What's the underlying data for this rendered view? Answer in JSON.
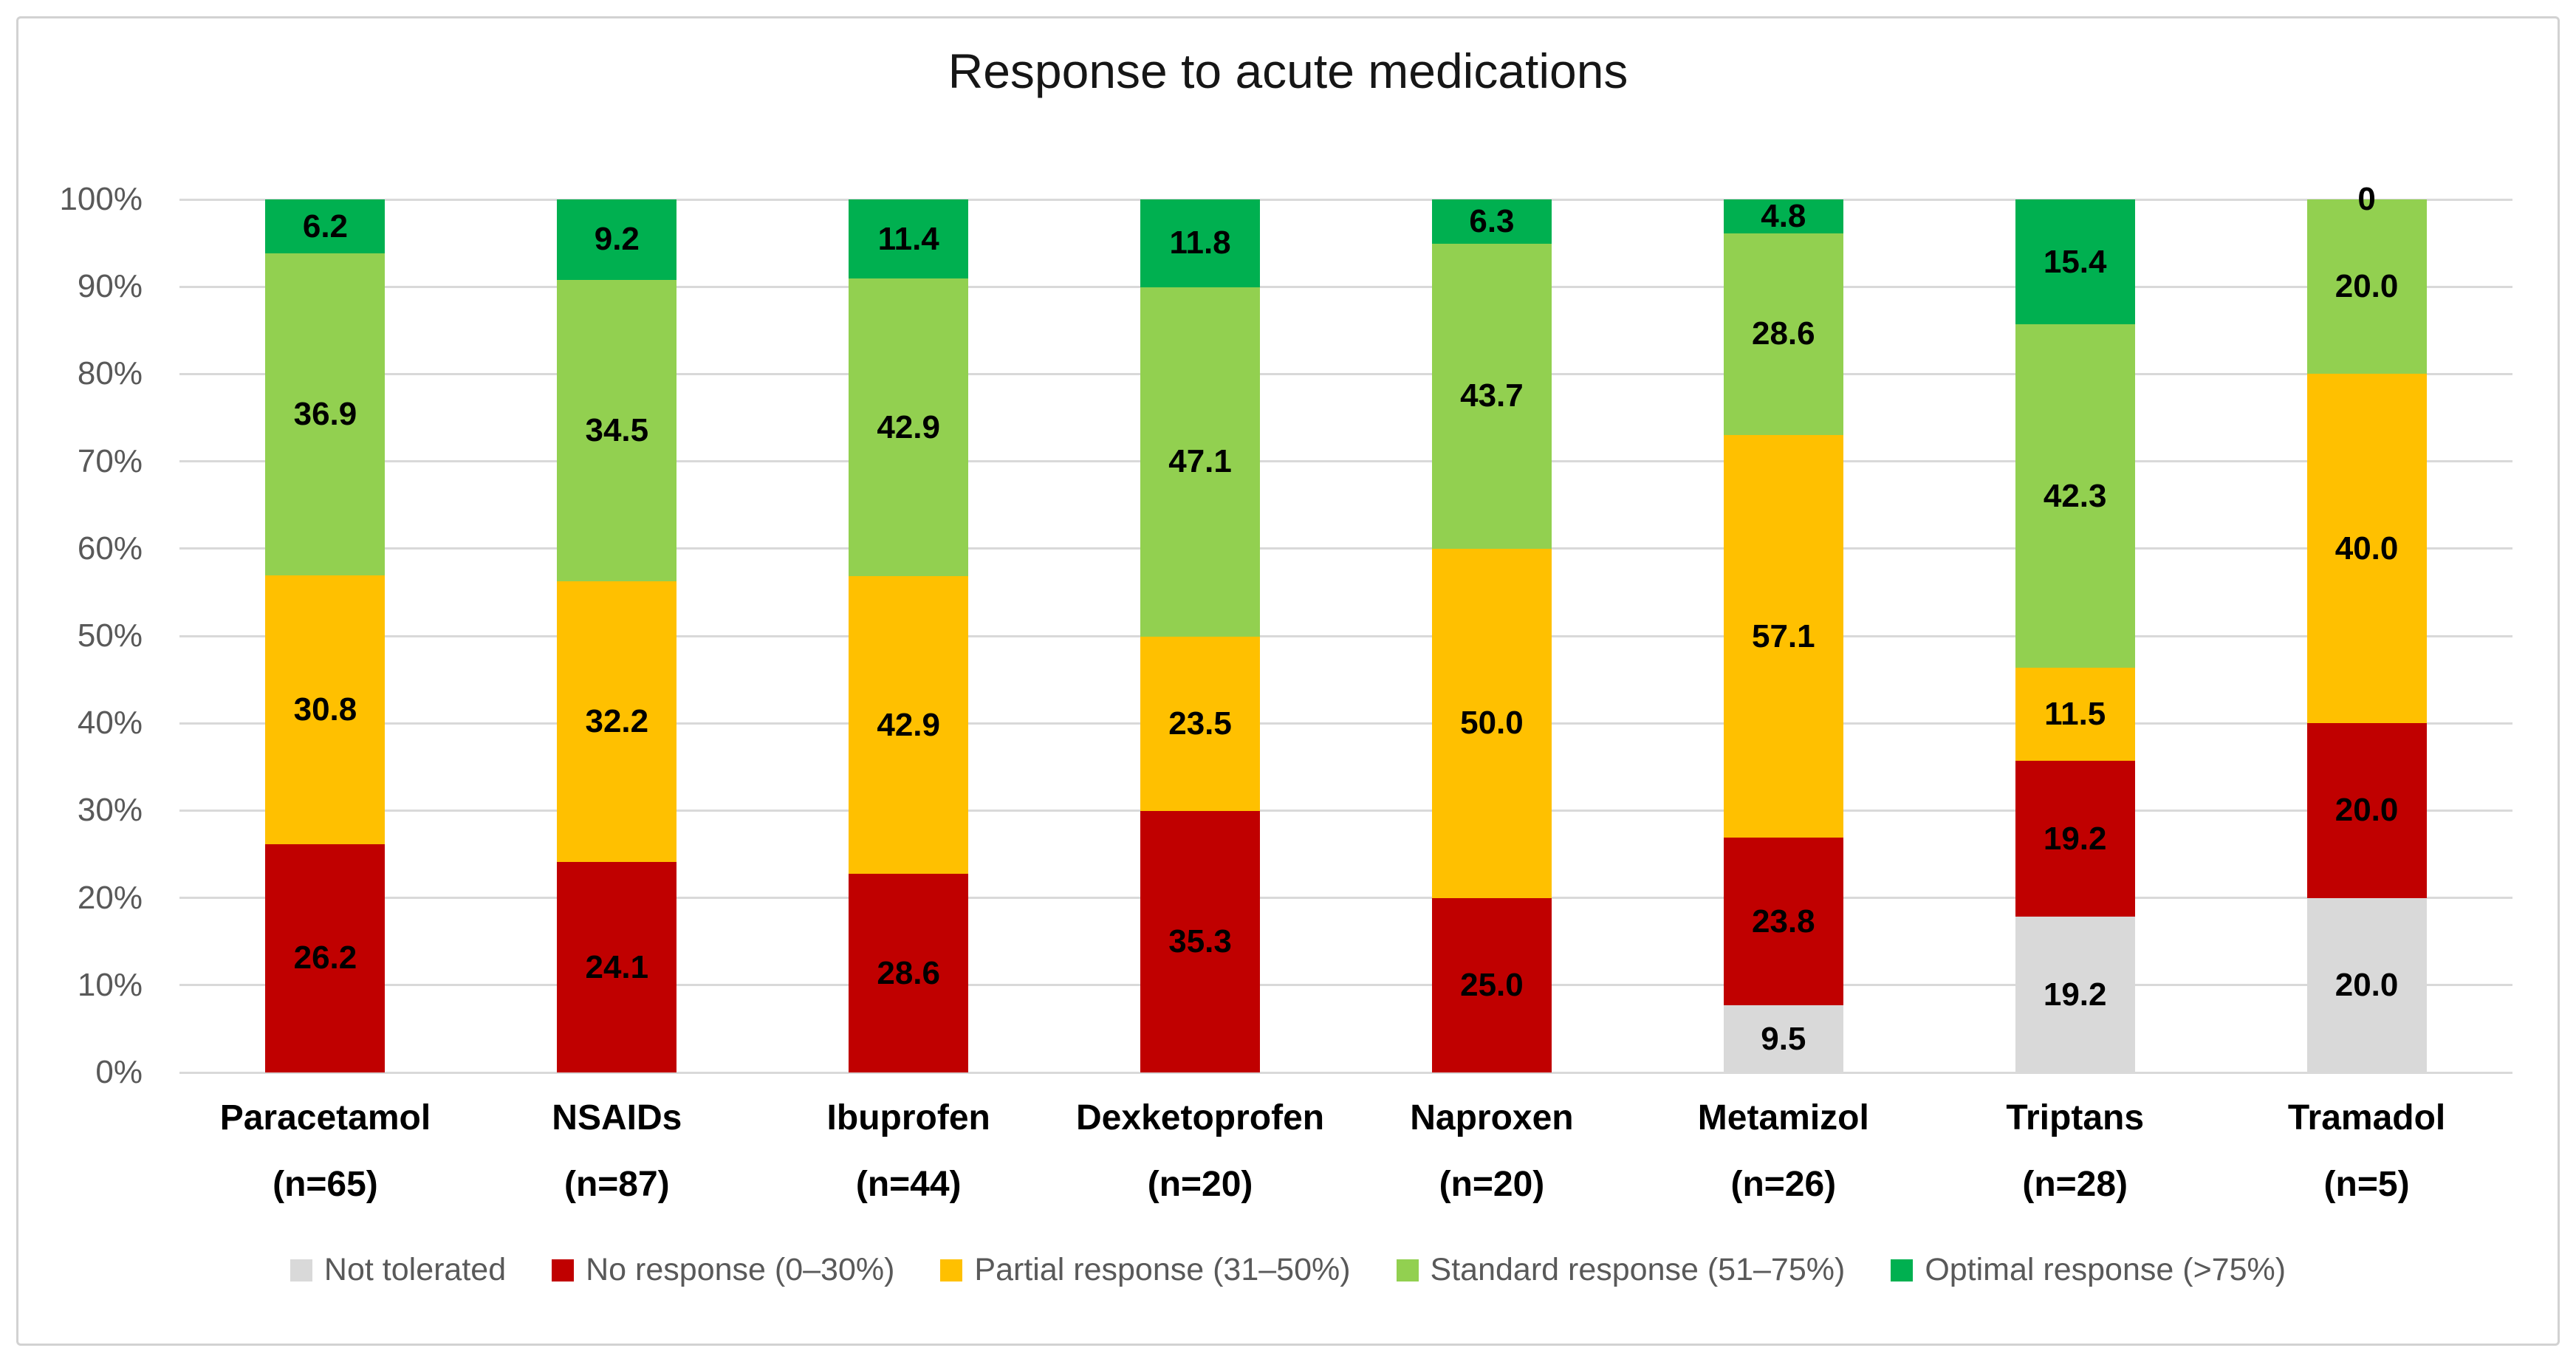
{
  "chart_data": {
    "type": "bar",
    "stacking": "percent-normalized-to-100",
    "title": "Response to acute medications",
    "y_axis": {
      "ticks": [
        "0%",
        "10%",
        "20%",
        "30%",
        "40%",
        "50%",
        "60%",
        "70%",
        "80%",
        "90%",
        "100%"
      ],
      "range": [
        0,
        100
      ],
      "grid": true
    },
    "legend_position": "bottom",
    "colors": {
      "not_tolerated": "#D9D9D9",
      "no_response": "#C00000",
      "partial": "#FFC000",
      "standard": "#92D050",
      "optimal": "#00B050",
      "gridline": "#D9D9D9",
      "axis_text": "#595959",
      "frame_border": "#D2D2D2"
    },
    "series": [
      {
        "key": "not_tolerated",
        "label": "Not tolerated",
        "color": "#D9D9D9"
      },
      {
        "key": "no_response",
        "label": "No response (0–30%)",
        "color": "#C00000"
      },
      {
        "key": "partial",
        "label": "Partial response (31–50%)",
        "color": "#FFC000"
      },
      {
        "key": "standard",
        "label": "Standard response (51–75%)",
        "color": "#92D050"
      },
      {
        "key": "optimal",
        "label": "Optimal response (>75%)",
        "color": "#00B050"
      }
    ],
    "bars": [
      {
        "category": "Paracetamol",
        "n": "(n=65)",
        "values": {
          "not_tolerated": null,
          "no_response": "26.2",
          "partial": "30.8",
          "standard": "36.9",
          "optimal": "6.2"
        }
      },
      {
        "category": "NSAIDs",
        "n": "(n=87)",
        "values": {
          "not_tolerated": null,
          "no_response": "24.1",
          "partial": "32.2",
          "standard": "34.5",
          "optimal": "9.2"
        }
      },
      {
        "category": "Ibuprofen",
        "n": "(n=44)",
        "values": {
          "not_tolerated": null,
          "no_response": "28.6",
          "partial": "42.9",
          "standard": "42.9",
          "optimal": "11.4"
        }
      },
      {
        "category": "Dexketoprofen",
        "n": "(n=20)",
        "values": {
          "not_tolerated": null,
          "no_response": "35.3",
          "partial": "23.5",
          "standard": "47.1",
          "optimal": "11.8"
        }
      },
      {
        "category": "Naproxen",
        "n": "(n=20)",
        "values": {
          "not_tolerated": null,
          "no_response": "25.0",
          "partial": "50.0",
          "standard": "43.7",
          "optimal": "6.3"
        }
      },
      {
        "category": "Metamizol",
        "n": "(n=26)",
        "values": {
          "not_tolerated": "9.5",
          "no_response": "23.8",
          "partial": "57.1",
          "standard": "28.6",
          "optimal": "4.8"
        }
      },
      {
        "category": "Triptans",
        "n": "(n=28)",
        "values": {
          "not_tolerated": "19.2",
          "no_response": "19.2",
          "partial": "11.5",
          "standard": "42.3",
          "optimal": "15.4"
        }
      },
      {
        "category": "Tramadol",
        "n": "(n=5)",
        "values": {
          "not_tolerated": "20.0",
          "no_response": "20.0",
          "partial": "40.0",
          "standard": "20.0",
          "optimal": "0"
        }
      }
    ]
  }
}
